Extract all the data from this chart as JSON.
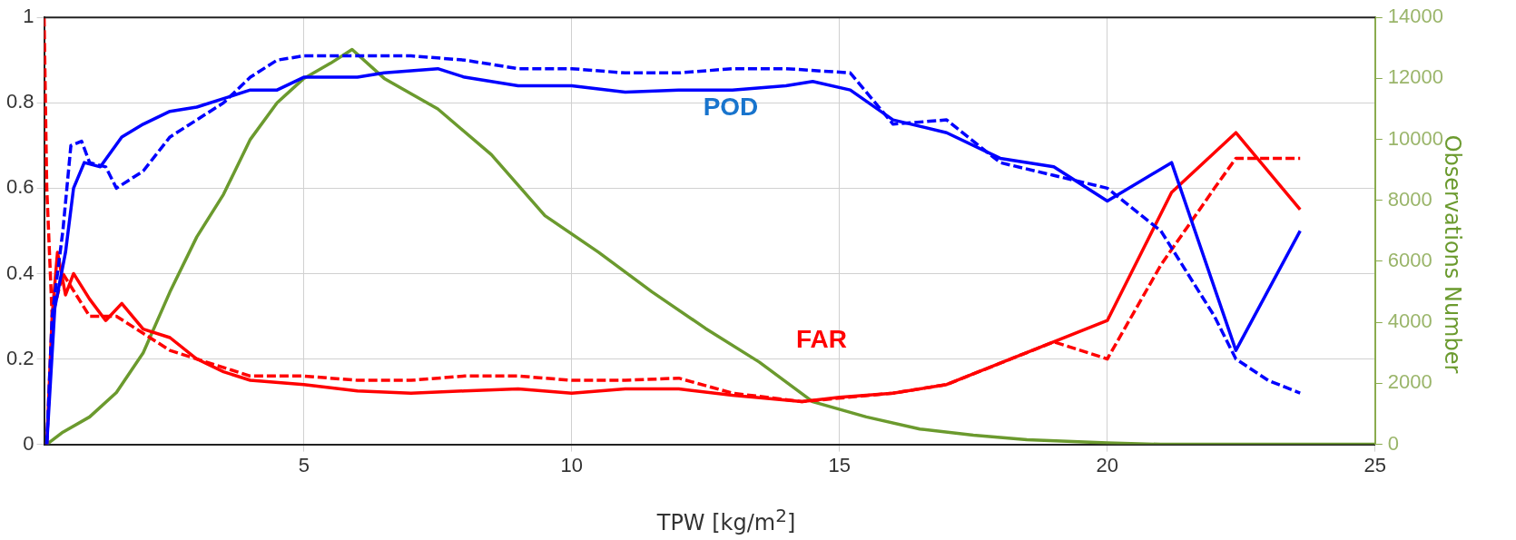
{
  "chart_data": {
    "type": "line",
    "xlabel": "TPW [kg/m$^{2}$]",
    "y2label": "Observations Number",
    "xlim": [
      0.15,
      25
    ],
    "xticks": [
      5,
      10,
      15,
      20,
      25
    ],
    "ylim": [
      0,
      1
    ],
    "yticks": [
      0,
      0.2,
      0.4,
      0.6,
      0.8,
      1
    ],
    "y2lim": [
      0,
      14000
    ],
    "y2ticks": [
      0,
      2000,
      4000,
      6000,
      8000,
      10000,
      12000,
      14000
    ],
    "grid": true,
    "marker": "none",
    "legend": false,
    "annotations": [
      "POD",
      "FAR"
    ],
    "series": [
      {
        "color": "#0000ff",
        "line_style": "solid",
        "x": [
          0.2,
          0.35,
          0.55,
          0.7,
          0.9,
          1.2,
          1.6,
          2,
          2.5,
          3,
          3.5,
          4,
          4.5,
          5,
          6,
          6.5,
          7.5,
          8,
          9,
          10,
          11,
          12,
          13,
          14,
          14.5,
          15.2,
          16,
          17,
          18,
          19,
          20,
          21.2,
          22.4,
          23.6
        ],
        "values": [
          0,
          0.32,
          0.45,
          0.6,
          0.66,
          0.65,
          0.72,
          0.75,
          0.78,
          0.79,
          0.81,
          0.83,
          0.83,
          0.86,
          0.86,
          0.87,
          0.88,
          0.86,
          0.84,
          0.84,
          0.825,
          0.83,
          0.83,
          0.84,
          0.85,
          0.83,
          0.76,
          0.73,
          0.67,
          0.65,
          0.57,
          0.66,
          0.22,
          0.5
        ]
      },
      {
        "color": "#0000ff",
        "line_style": "dashed",
        "x": [
          0.2,
          0.3,
          0.5,
          0.65,
          0.85,
          1,
          1.3,
          1.5,
          2,
          2.5,
          3,
          3.5,
          4,
          4.5,
          5,
          6,
          7,
          8,
          9,
          10,
          11,
          12,
          13,
          14,
          15.2,
          16,
          17,
          18,
          19,
          20,
          21,
          22,
          22.4,
          23,
          23.6
        ],
        "values": [
          0,
          0.3,
          0.5,
          0.7,
          0.71,
          0.66,
          0.65,
          0.6,
          0.64,
          0.72,
          0.76,
          0.8,
          0.86,
          0.9,
          0.91,
          0.91,
          0.91,
          0.9,
          0.88,
          0.88,
          0.87,
          0.87,
          0.88,
          0.88,
          0.87,
          0.75,
          0.76,
          0.66,
          0.63,
          0.6,
          0.5,
          0.3,
          0.2,
          0.15,
          0.12
        ]
      },
      {
        "color": "#ff0000",
        "line_style": "solid",
        "x": [
          0.2,
          0.3,
          0.4,
          0.55,
          0.7,
          1,
          1.3,
          1.6,
          2,
          2.5,
          3,
          3.5,
          4,
          5,
          6,
          7,
          8,
          9,
          10,
          11,
          12,
          13,
          14.3,
          15,
          16,
          17,
          18,
          19,
          20,
          21.2,
          22.4,
          23.6
        ],
        "values": [
          0,
          0.3,
          0.45,
          0.35,
          0.4,
          0.34,
          0.29,
          0.33,
          0.27,
          0.25,
          0.2,
          0.17,
          0.15,
          0.14,
          0.125,
          0.12,
          0.125,
          0.13,
          0.12,
          0.13,
          0.13,
          0.115,
          0.1,
          0.11,
          0.12,
          0.14,
          0.19,
          0.24,
          0.29,
          0.59,
          0.73,
          0.55
        ]
      },
      {
        "color": "#ff0000",
        "line_style": "dashed",
        "x": [
          0.15,
          0.2,
          0.3,
          0.5,
          1,
          1.5,
          2,
          2.5,
          3,
          4,
          5,
          6,
          7,
          8,
          9,
          10,
          11,
          12,
          13,
          14.3,
          16,
          17,
          18,
          19,
          20,
          21,
          22,
          22.4,
          23.6
        ],
        "values": [
          1,
          0.6,
          0.3,
          0.4,
          0.3,
          0.3,
          0.26,
          0.22,
          0.2,
          0.16,
          0.16,
          0.15,
          0.15,
          0.16,
          0.16,
          0.15,
          0.15,
          0.155,
          0.12,
          0.1,
          0.12,
          0.14,
          0.19,
          0.24,
          0.2,
          0.42,
          0.6,
          0.67,
          0.67
        ]
      },
      {
        "color": "#6b9a2e",
        "line_style": "solid",
        "axis": "y2",
        "x": [
          0.2,
          0.5,
          1,
          1.5,
          2,
          2.5,
          3,
          3.5,
          4,
          4.5,
          5,
          5.5,
          5.9,
          6.5,
          7.5,
          8.5,
          9.5,
          10.5,
          11.5,
          12.5,
          13.5,
          14.5,
          15.5,
          16.5,
          17.5,
          18.5,
          20,
          21,
          25
        ],
        "values": [
          0,
          400,
          900,
          1700,
          3000,
          5000,
          6800,
          8200,
          10000,
          11200,
          12000,
          12500,
          12950,
          12000,
          11000,
          9500,
          7500,
          6300,
          5000,
          3800,
          2700,
          1400,
          900,
          500,
          300,
          150,
          50,
          0,
          0
        ]
      }
    ]
  }
}
